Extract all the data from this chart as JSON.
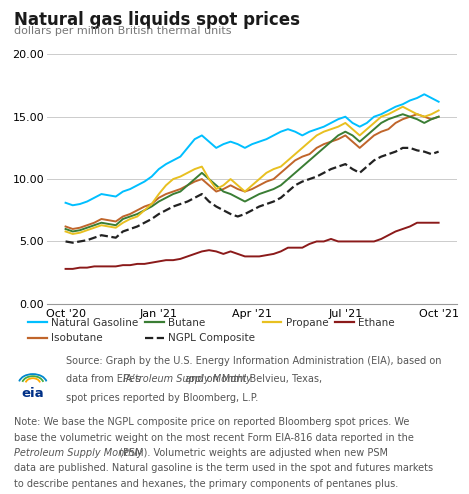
{
  "title": "Natural gas liquids spot prices",
  "subtitle": "dollars per million British thermal units",
  "ylim": [
    0.0,
    20.0
  ],
  "yticks": [
    0.0,
    5.0,
    10.0,
    15.0,
    20.0
  ],
  "xtick_labels": [
    "Oct '20",
    "Jan '21",
    "Apr '21",
    "Jul '21",
    "Oct '21"
  ],
  "source_line1": "Source: Graph by the U.S. Energy Information Administration (EIA), based on",
  "source_line2": "data from EIA’s ",
  "source_line2b": "Petroleum Supply Monthly",
  "source_line2c": " and on Mont Belvieu, Texas,",
  "source_line3": "spot prices reported by Bloomberg, L.P.",
  "note_text_plain1": "Note: We base the NGPL composite price on reported Bloomberg spot prices. We",
  "note_text_plain2": "base the volumetric weight on the most recent Form EIA-816 data reported in the",
  "note_text_italic": "Petroleum Supply Monthly",
  "note_text_plain3": " (PSM). Volumetric weights are adjusted when new PSM",
  "note_text_plain4": "data are published. Natural gasoline is the term used in the spot and futures markets",
  "note_text_plain5": "to describe pentanes and hexanes, the primary components of pentanes plus.",
  "series": {
    "Natural Gasoline": {
      "color": "#00BFFF",
      "linestyle": "-",
      "linewidth": 1.4,
      "values": [
        8.1,
        7.9,
        8.0,
        8.2,
        8.5,
        8.8,
        8.7,
        8.6,
        9.0,
        9.2,
        9.5,
        9.8,
        10.2,
        10.8,
        11.2,
        11.5,
        11.8,
        12.5,
        13.2,
        13.5,
        13.0,
        12.5,
        12.8,
        13.0,
        12.8,
        12.5,
        12.8,
        13.0,
        13.2,
        13.5,
        13.8,
        14.0,
        13.8,
        13.5,
        13.8,
        14.0,
        14.2,
        14.5,
        14.8,
        15.0,
        14.5,
        14.2,
        14.5,
        15.0,
        15.2,
        15.5,
        15.8,
        16.0,
        16.3,
        16.5,
        16.8,
        16.5,
        16.2
      ]
    },
    "Isobutane": {
      "color": "#C0652B",
      "linestyle": "-",
      "linewidth": 1.4,
      "values": [
        6.2,
        6.0,
        6.1,
        6.3,
        6.5,
        6.8,
        6.7,
        6.6,
        7.0,
        7.2,
        7.5,
        7.8,
        8.0,
        8.5,
        8.8,
        9.0,
        9.2,
        9.5,
        9.8,
        10.0,
        9.5,
        9.0,
        9.2,
        9.5,
        9.2,
        9.0,
        9.2,
        9.5,
        9.8,
        10.0,
        10.5,
        11.0,
        11.5,
        11.8,
        12.0,
        12.5,
        12.8,
        13.0,
        13.2,
        13.5,
        13.0,
        12.5,
        13.0,
        13.5,
        13.8,
        14.0,
        14.5,
        14.8,
        15.0,
        15.2,
        15.0,
        14.8,
        15.0
      ]
    },
    "Butane": {
      "color": "#3A7D34",
      "linestyle": "-",
      "linewidth": 1.4,
      "values": [
        6.0,
        5.8,
        5.9,
        6.1,
        6.3,
        6.5,
        6.4,
        6.3,
        6.8,
        7.0,
        7.2,
        7.5,
        7.8,
        8.2,
        8.5,
        8.8,
        9.0,
        9.5,
        10.0,
        10.5,
        10.0,
        9.5,
        9.0,
        8.8,
        8.5,
        8.2,
        8.5,
        8.8,
        9.0,
        9.2,
        9.5,
        10.0,
        10.5,
        11.0,
        11.5,
        12.0,
        12.5,
        13.0,
        13.5,
        13.8,
        13.5,
        13.0,
        13.5,
        14.0,
        14.5,
        14.8,
        15.0,
        15.2,
        15.0,
        14.8,
        14.5,
        14.8,
        15.0
      ]
    },
    "NGPL Composite": {
      "color": "#222222",
      "linestyle": "--",
      "linewidth": 1.6,
      "values": [
        5.0,
        4.9,
        5.0,
        5.1,
        5.3,
        5.5,
        5.4,
        5.3,
        5.8,
        6.0,
        6.2,
        6.5,
        6.8,
        7.2,
        7.5,
        7.8,
        8.0,
        8.2,
        8.5,
        8.8,
        8.2,
        7.8,
        7.5,
        7.2,
        7.0,
        7.2,
        7.5,
        7.8,
        8.0,
        8.2,
        8.5,
        9.0,
        9.5,
        9.8,
        10.0,
        10.2,
        10.5,
        10.8,
        11.0,
        11.2,
        10.8,
        10.5,
        11.0,
        11.5,
        11.8,
        12.0,
        12.2,
        12.5,
        12.5,
        12.3,
        12.2,
        12.0,
        12.2
      ]
    },
    "Propane": {
      "color": "#E8C020",
      "linestyle": "-",
      "linewidth": 1.4,
      "values": [
        5.8,
        5.6,
        5.7,
        5.9,
        6.1,
        6.3,
        6.2,
        6.1,
        6.5,
        6.8,
        7.0,
        7.5,
        8.0,
        8.8,
        9.5,
        10.0,
        10.2,
        10.5,
        10.8,
        11.0,
        10.0,
        9.2,
        9.5,
        10.0,
        9.5,
        9.0,
        9.5,
        10.0,
        10.5,
        10.8,
        11.0,
        11.5,
        12.0,
        12.5,
        13.0,
        13.5,
        13.8,
        14.0,
        14.2,
        14.5,
        14.0,
        13.5,
        14.0,
        14.5,
        15.0,
        15.2,
        15.5,
        15.8,
        15.5,
        15.2,
        15.0,
        15.2,
        15.5
      ]
    },
    "Ethane": {
      "color": "#8B1A1A",
      "linestyle": "-",
      "linewidth": 1.4,
      "values": [
        2.8,
        2.8,
        2.9,
        2.9,
        3.0,
        3.0,
        3.0,
        3.0,
        3.1,
        3.1,
        3.2,
        3.2,
        3.3,
        3.4,
        3.5,
        3.5,
        3.6,
        3.8,
        4.0,
        4.2,
        4.3,
        4.2,
        4.0,
        4.2,
        4.0,
        3.8,
        3.8,
        3.8,
        3.9,
        4.0,
        4.2,
        4.5,
        4.5,
        4.5,
        4.8,
        5.0,
        5.0,
        5.2,
        5.0,
        5.0,
        5.0,
        5.0,
        5.0,
        5.0,
        5.2,
        5.5,
        5.8,
        6.0,
        6.2,
        6.5,
        6.5,
        6.5,
        6.5
      ]
    }
  },
  "legend_order": [
    "Natural Gasoline",
    "Isobutane",
    "Butane",
    "NGPL Composite",
    "Propane",
    "Ethane"
  ],
  "legend_bg": "#EBEBEB",
  "background_color": "#FFFFFF",
  "plot_bg_color": "#FFFFFF",
  "grid_color": "#CCCCCC",
  "n_points": 53
}
